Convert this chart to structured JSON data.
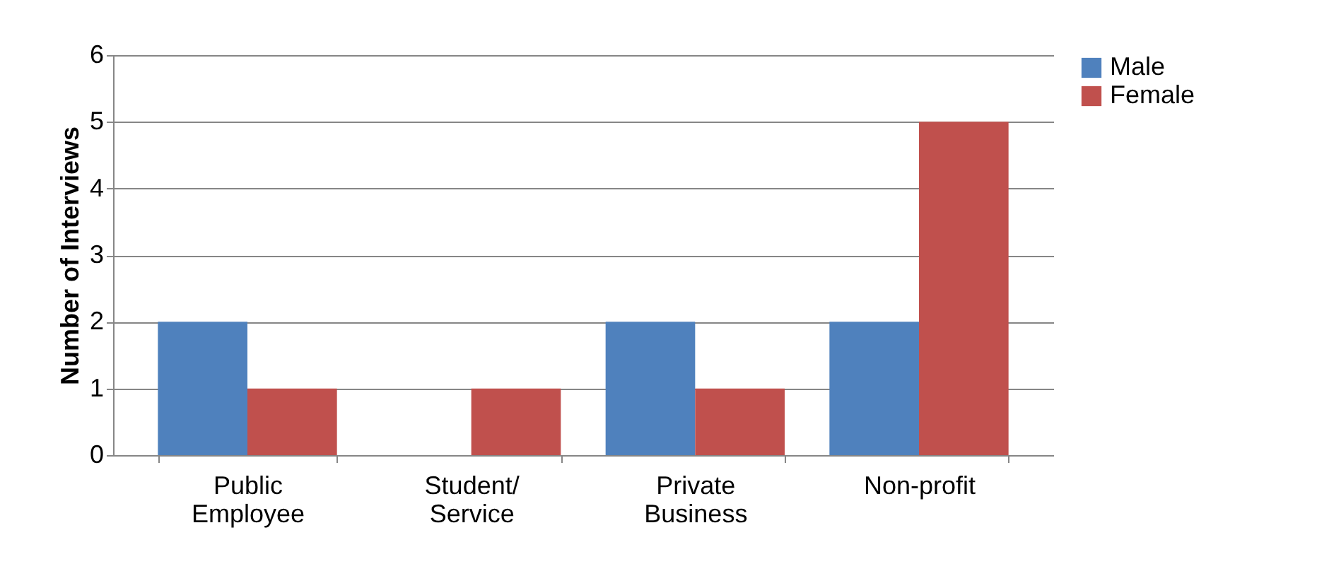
{
  "chart_data": {
    "type": "bar",
    "ylabel": "Number of Interviews",
    "categories": [
      "Public Employee",
      "Student/ Service",
      "Private Business",
      "Non-profit"
    ],
    "series": [
      {
        "name": "Male",
        "color": "#4f81bd",
        "values": [
          2,
          0,
          2,
          2
        ]
      },
      {
        "name": "Female",
        "color": "#c0504d",
        "values": [
          1,
          1,
          1,
          5
        ]
      }
    ],
    "ylim": [
      0,
      6
    ],
    "yticks": [
      0,
      1,
      2,
      3,
      4,
      5,
      6
    ],
    "grid": "y",
    "legend": "right"
  }
}
